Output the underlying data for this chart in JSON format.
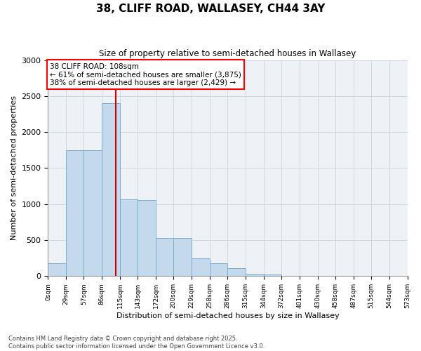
{
  "title_line1": "38, CLIFF ROAD, WALLASEY, CH44 3AY",
  "title_line2": "Size of property relative to semi-detached houses in Wallasey",
  "xlabel": "Distribution of semi-detached houses by size in Wallasey",
  "ylabel": "Number of semi-detached properties",
  "bar_color": "#c5d9ed",
  "bar_edge_color": "#7aafd4",
  "vline_color": "#cc0000",
  "vline_x": 108,
  "annotation_title": "38 CLIFF ROAD: 108sqm",
  "annotation_left": "← 61% of semi-detached houses are smaller (3,875)",
  "annotation_right": "38% of semi-detached houses are larger (2,429) →",
  "bin_edges": [
    0,
    29,
    57,
    86,
    115,
    143,
    172,
    200,
    229,
    258,
    286,
    315,
    344,
    372,
    401,
    430,
    458,
    487,
    515,
    544,
    573
  ],
  "bin_counts": [
    175,
    1750,
    1750,
    2400,
    1070,
    1060,
    530,
    530,
    245,
    175,
    115,
    35,
    25,
    0,
    0,
    0,
    0,
    0,
    0,
    0
  ],
  "ylim": [
    0,
    3000
  ],
  "yticks": [
    0,
    500,
    1000,
    1500,
    2000,
    2500,
    3000
  ],
  "background_color": "#eef2f7",
  "grid_color": "#d0d8e4",
  "footer_line1": "Contains HM Land Registry data © Crown copyright and database right 2025.",
  "footer_line2": "Contains public sector information licensed under the Open Government Licence v3.0."
}
